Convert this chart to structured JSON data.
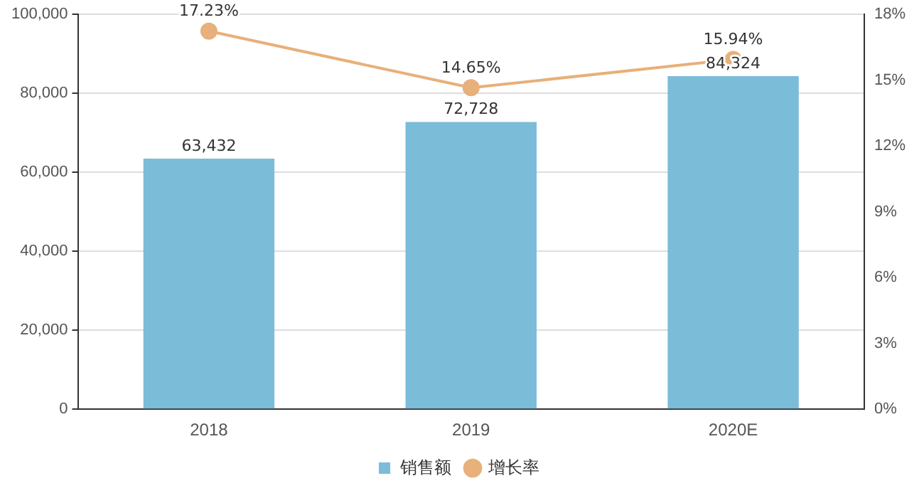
{
  "chart_data": {
    "type": "bar",
    "categories": [
      "2018",
      "2019",
      "2020E"
    ],
    "series": [
      {
        "name": "销售额",
        "color": "#7bbcd8",
        "values": [
          63432,
          72728,
          84324
        ],
        "value_labels": [
          "63,432",
          "72,728",
          "84,324"
        ]
      },
      {
        "name": "增长率",
        "type": "line",
        "axis": "y2",
        "color": "#e8b07a",
        "values": [
          17.23,
          14.65,
          15.94
        ],
        "value_labels": [
          "17.23%",
          "14.65%",
          "15.94%"
        ]
      }
    ],
    "ylim": [
      0,
      100000
    ],
    "yticks": [
      0,
      {
        "value": 20000,
        "label": "20,000"
      },
      {
        "value": 40000,
        "label": "40,000"
      },
      {
        "value": 60000,
        "label": "60,000"
      },
      {
        "value": 80000,
        "label": "80,000"
      },
      {
        "value": 100000,
        "label": "100,000"
      }
    ],
    "y2lim": [
      0,
      18
    ],
    "y2ticks": [
      {
        "value": 0,
        "label": "0%"
      },
      {
        "value": 3,
        "label": "3%"
      },
      {
        "value": 6,
        "label": "6%"
      },
      {
        "value": 9,
        "label": "9%"
      },
      {
        "value": 12,
        "label": "12%"
      },
      {
        "value": 15,
        "label": "15%"
      },
      {
        "value": 18,
        "label": "18%"
      }
    ],
    "grid": "y",
    "legend": "bottom",
    "marker": "circle",
    "line_style": "solid"
  }
}
